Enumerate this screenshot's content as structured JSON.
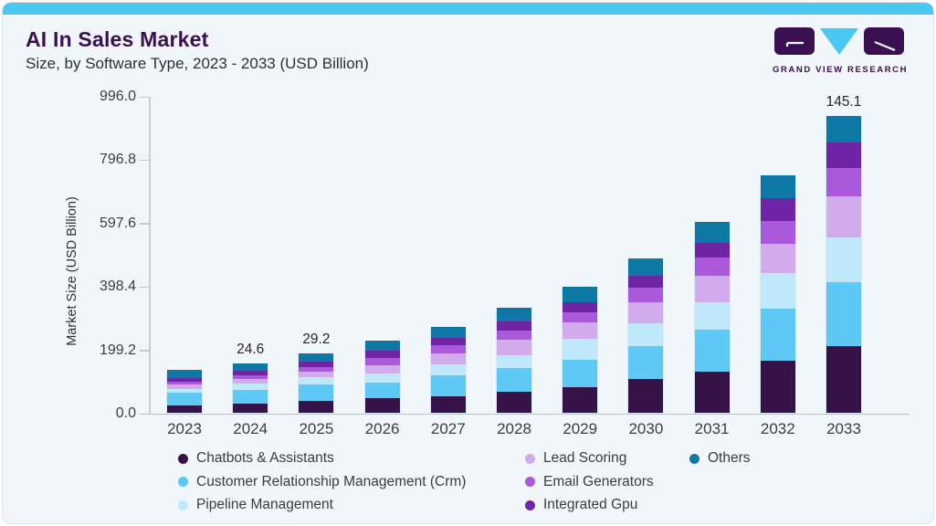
{
  "header": {
    "title": "AI In Sales Market",
    "subtitle": "Size, by Software Type, 2023 - 2033 (USD Billion)",
    "logo_text": "GRAND VIEW RESEARCH"
  },
  "colors": {
    "accent_top_bar": "#49c8f1",
    "card_background": "#f1f6fa",
    "brand_purple": "#3b1053",
    "axis_line": "#c9ced4"
  },
  "chart_data": {
    "type": "bar",
    "stacked": true,
    "title": "AI In Sales Market Size, by Software Type, 2023 - 2033 (USD Billion)",
    "ylabel": "Market Size (USD Billion)",
    "xlabel": "",
    "ylim": [
      0,
      996
    ],
    "yticks": [
      996.0,
      796.8,
      597.6,
      398.4,
      199.2,
      0.0
    ],
    "grid": false,
    "legend_position": "bottom",
    "categories": [
      "2023",
      "2024",
      "2025",
      "2026",
      "2027",
      "2028",
      "2029",
      "2030",
      "2031",
      "2032",
      "2033"
    ],
    "series": [
      {
        "key": "chatbots",
        "label": "Chatbots & Assistants",
        "color": "#351349",
        "values": [
          24,
          29,
          36,
          45,
          52,
          66,
          81,
          105,
          129,
          164,
          209
        ]
      },
      {
        "key": "crm",
        "label": "Customer Relationship Management (Crm)",
        "color": "#5fc9f6",
        "values": [
          38,
          43,
          54,
          50,
          65,
          76,
          85,
          104,
          131,
          162,
          202
        ]
      },
      {
        "key": "pipeline",
        "label": "Pipeline Management",
        "color": "#bfe8fa",
        "values": [
          14,
          19,
          22,
          27,
          35,
          38,
          66,
          73,
          86,
          112,
          141
        ]
      },
      {
        "key": "lead_scoring",
        "label": "Lead Scoring",
        "color": "#d2abec",
        "values": [
          12,
          14,
          18,
          26,
          35,
          50,
          51,
          64,
          84,
          92,
          128
        ]
      },
      {
        "key": "email_generators",
        "label": "Email Generators",
        "color": "#a959d9",
        "values": [
          11,
          12,
          14,
          24,
          25,
          29,
          34,
          47,
          58,
          74,
          89
        ]
      },
      {
        "key": "integrated_gpu",
        "label": "Integrated Gpu",
        "color": "#6f24a6",
        "values": [
          11,
          16,
          17,
          24,
          23,
          27,
          29,
          37,
          45,
          71,
          81
        ]
      },
      {
        "key": "others",
        "label": "Others",
        "color": "#0c78a3",
        "values": [
          25,
          22,
          26,
          30,
          36,
          43,
          49,
          55,
          67,
          71,
          83
        ]
      }
    ],
    "bar_labels": [
      {
        "category": "2024",
        "text": "24.6"
      },
      {
        "category": "2025",
        "text": "29.2"
      },
      {
        "category": "2033",
        "text": "145.1"
      }
    ],
    "legend_columns": [
      [
        "chatbots",
        "crm",
        "pipeline"
      ],
      [
        "lead_scoring",
        "email_generators",
        "integrated_gpu"
      ],
      [
        "others"
      ]
    ]
  }
}
